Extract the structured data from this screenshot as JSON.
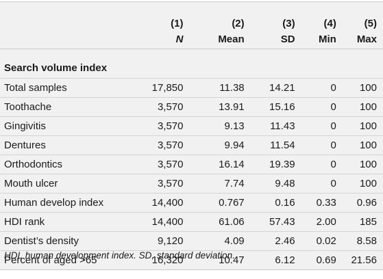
{
  "table": {
    "columns": [
      {
        "index": "(1)",
        "label": "N"
      },
      {
        "index": "(2)",
        "label": "Mean"
      },
      {
        "index": "(3)",
        "label": "SD"
      },
      {
        "index": "(4)",
        "label": "Min"
      },
      {
        "index": "(5)",
        "label": "Max"
      }
    ],
    "section_label": "Search volume index",
    "rows": [
      {
        "label": "Total samples",
        "n": "17,850",
        "mean": "11.38",
        "sd": "14.21",
        "min": "0",
        "max": "100"
      },
      {
        "label": "Toothache",
        "n": "3,570",
        "mean": "13.91",
        "sd": "15.16",
        "min": "0",
        "max": "100"
      },
      {
        "label": "Gingivitis",
        "n": "3,570",
        "mean": "9.13",
        "sd": "11.43",
        "min": "0",
        "max": "100"
      },
      {
        "label": "Dentures",
        "n": "3,570",
        "mean": "9.94",
        "sd": "11.54",
        "min": "0",
        "max": "100"
      },
      {
        "label": "Orthodontics",
        "n": "3,570",
        "mean": "16.14",
        "sd": "19.39",
        "min": "0",
        "max": "100"
      },
      {
        "label": "Mouth ulcer",
        "n": "3,570",
        "mean": "7.74",
        "sd": "9.48",
        "min": "0",
        "max": "100"
      },
      {
        "label": "Human develop index",
        "n": "14,400",
        "mean": "0.767",
        "sd": "0.16",
        "min": "0.33",
        "max": "0.96"
      },
      {
        "label": "HDI rank",
        "n": "14,400",
        "mean": "61.06",
        "sd": "57.43",
        "min": "2.00",
        "max": "185"
      },
      {
        "label": "Dentist’s density",
        "n": "9,120",
        "mean": "4.09",
        "sd": "2.46",
        "min": "0.02",
        "max": "8.58"
      },
      {
        "label": "Percent of aged >65",
        "n": "16,320",
        "mean": "10.47",
        "sd": "6.12",
        "min": "0.69",
        "max": "21.56"
      }
    ]
  },
  "footnote": "HDI, human development index. SD, standard deviation."
}
